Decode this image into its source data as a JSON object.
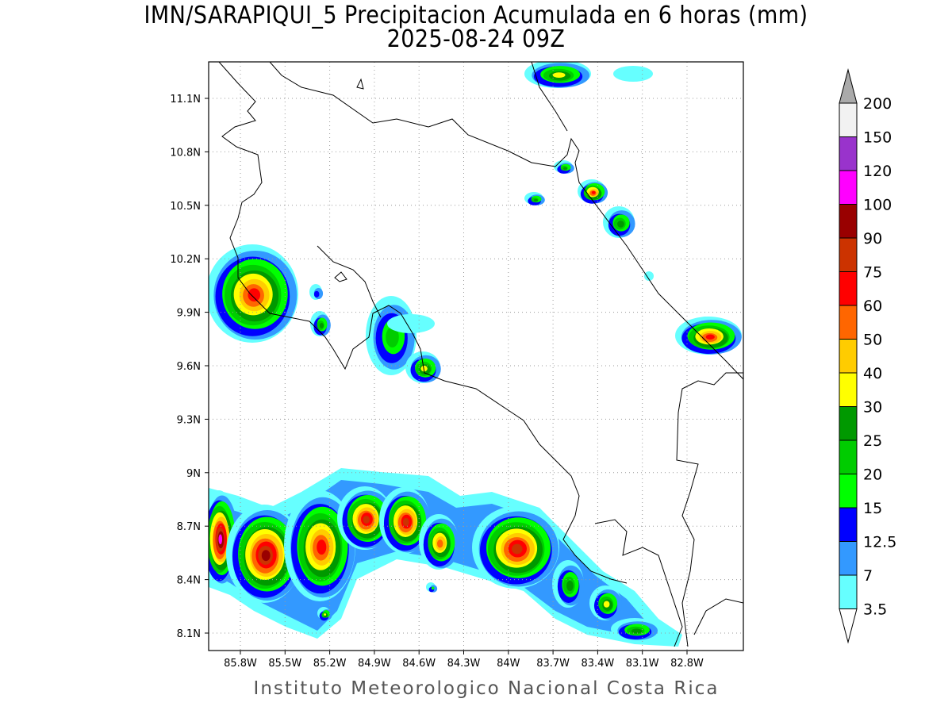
{
  "title": "IMN/SARAPIQUI_5 Precipitacion Acumulada en 6 horas (mm)",
  "subtitle": "2025-08-24 09Z",
  "credit": "Instituto Meteorologico Nacional Costa Rica",
  "map": {
    "lon_labels": [
      "85.8W",
      "85.5W",
      "85.2W",
      "84.9W",
      "84.6W",
      "84.3W",
      "84W",
      "83.7W",
      "83.4W",
      "83.1W",
      "82.8W"
    ],
    "lat_labels": [
      "11.1N",
      "10.8N",
      "10.5N",
      "10.2N",
      "9.9N",
      "9.6N",
      "9.3N",
      "9N",
      "8.7N",
      "8.4N",
      "8.1N"
    ],
    "grid": "dotted"
  },
  "colorbar": {
    "labels": [
      "3.5",
      "7",
      "12.5",
      "15",
      "20",
      "25",
      "30",
      "40",
      "50",
      "60",
      "75",
      "90",
      "100",
      "120",
      "150",
      "200"
    ],
    "colors": [
      "#66ffff",
      "#3399ff",
      "#0000ff",
      "#00ff00",
      "#00cc00",
      "#009900",
      "#ffff00",
      "#ffcc00",
      "#ff6600",
      "#ff0000",
      "#cc3300",
      "#990000",
      "#ff00ff",
      "#9933cc",
      "#f2f2f2"
    ],
    "over_color": "#aaaaaa",
    "under_color": "#ffffff"
  }
}
